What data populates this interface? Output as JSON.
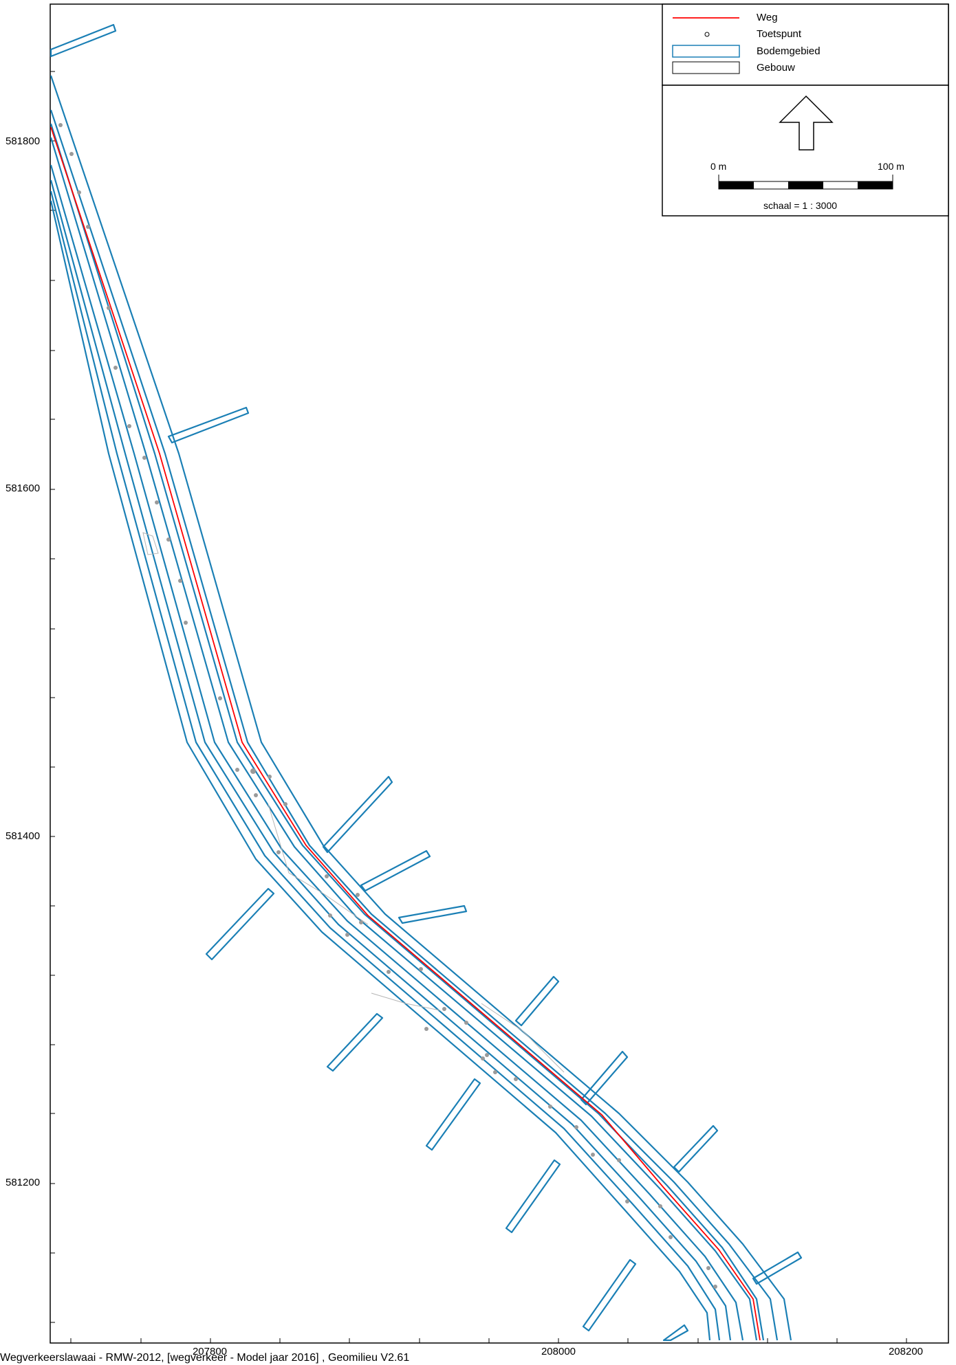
{
  "legend": {
    "items": [
      {
        "label": "Weg",
        "symbol": "red-line",
        "color": "#ff0000"
      },
      {
        "label": "Toetspunt",
        "symbol": "point"
      },
      {
        "label": "Bodemgebied",
        "symbol": "blue-rect",
        "color": "#1a7fb5"
      },
      {
        "label": "Gebouw",
        "symbol": "black-rect",
        "color": "#000000"
      }
    ]
  },
  "scale": {
    "start_label": "0 m",
    "end_label": "100 m",
    "ratio_label": "schaal = 1 : 3000"
  },
  "axes": {
    "y_labels": [
      "581800",
      "581600",
      "581400",
      "581200"
    ],
    "x_labels": [
      "207800",
      "208000",
      "208200"
    ]
  },
  "footer": "Wegverkeerslawaai - RMW-2012, [wegverkeer - Model jaar 2016] , Geomilieu V2.61",
  "colors": {
    "road": "#ff0000",
    "ground": "#1a7fb5",
    "points": "#9a9a9a",
    "frame": "#000000"
  }
}
